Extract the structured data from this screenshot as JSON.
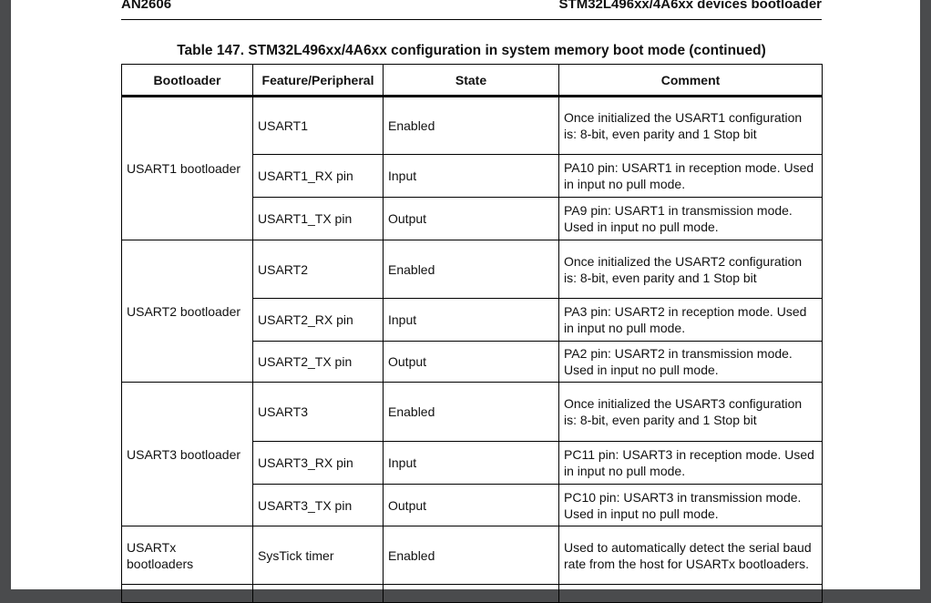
{
  "header": {
    "doc_id": "AN2606",
    "section": "STM32L496xx/4A6xx devices bootloader"
  },
  "caption": "Table 147. STM32L496xx/4A6xx configuration in system memory boot mode (continued)",
  "columns": [
    "Bootloader",
    "Feature/Peripheral",
    "State",
    "Comment"
  ],
  "groups": [
    {
      "bootloader": "USART1 bootloader",
      "rows": [
        {
          "feature": "USART1",
          "state": "Enabled",
          "comment": "Once initialized the USART1 configuration is: 8-bit, even parity and 1 Stop bit"
        },
        {
          "feature": "USART1_RX pin",
          "state": "Input",
          "comment": "PA10 pin: USART1 in reception mode. Used in input no pull mode."
        },
        {
          "feature": "USART1_TX pin",
          "state": "Output",
          "comment": "PA9 pin: USART1 in transmission mode. Used in input no pull mode."
        }
      ]
    },
    {
      "bootloader": "USART2 bootloader",
      "rows": [
        {
          "feature": "USART2",
          "state": "Enabled",
          "comment": "Once initialized the USART2 configuration is: 8-bit, even parity and 1 Stop bit"
        },
        {
          "feature": "USART2_RX pin",
          "state": "Input",
          "comment": "PA3 pin: USART2 in reception mode. Used in input no pull mode."
        },
        {
          "feature": "USART2_TX pin",
          "state": "Output",
          "comment": "PA2 pin: USART2 in transmission mode. Used in input no pull mode."
        }
      ]
    },
    {
      "bootloader": "USART3 bootloader",
      "rows": [
        {
          "feature": "USART3",
          "state": "Enabled",
          "comment": "Once initialized the USART3 configuration is: 8-bit, even parity and 1 Stop bit"
        },
        {
          "feature": "USART3_RX pin",
          "state": "Input",
          "comment": "PC11 pin: USART3 in reception mode. Used in input no pull mode."
        },
        {
          "feature": "USART3_TX pin",
          "state": "Output",
          "comment": "PC10 pin: USART3 in transmission mode. Used in input no pull mode."
        }
      ]
    },
    {
      "bootloader": "USARTx bootloaders",
      "rows": [
        {
          "feature": "SysTick timer",
          "state": "Enabled",
          "comment": "Used to automatically detect the serial baud rate from the host for USARTx bootloaders."
        }
      ]
    }
  ]
}
